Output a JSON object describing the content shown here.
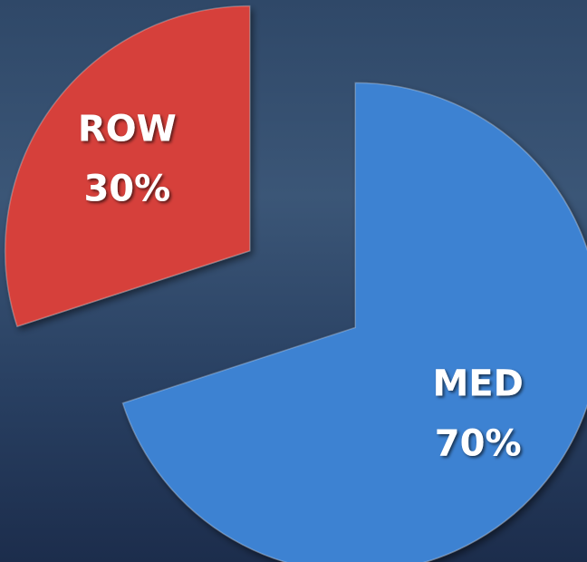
{
  "chart_data": {
    "type": "pie",
    "categories": [
      "MED",
      "ROW"
    ],
    "values": [
      70,
      30
    ],
    "value_labels": [
      "70%",
      "30%"
    ],
    "colors": [
      "#3d82d2",
      "#d6403a"
    ]
  }
}
